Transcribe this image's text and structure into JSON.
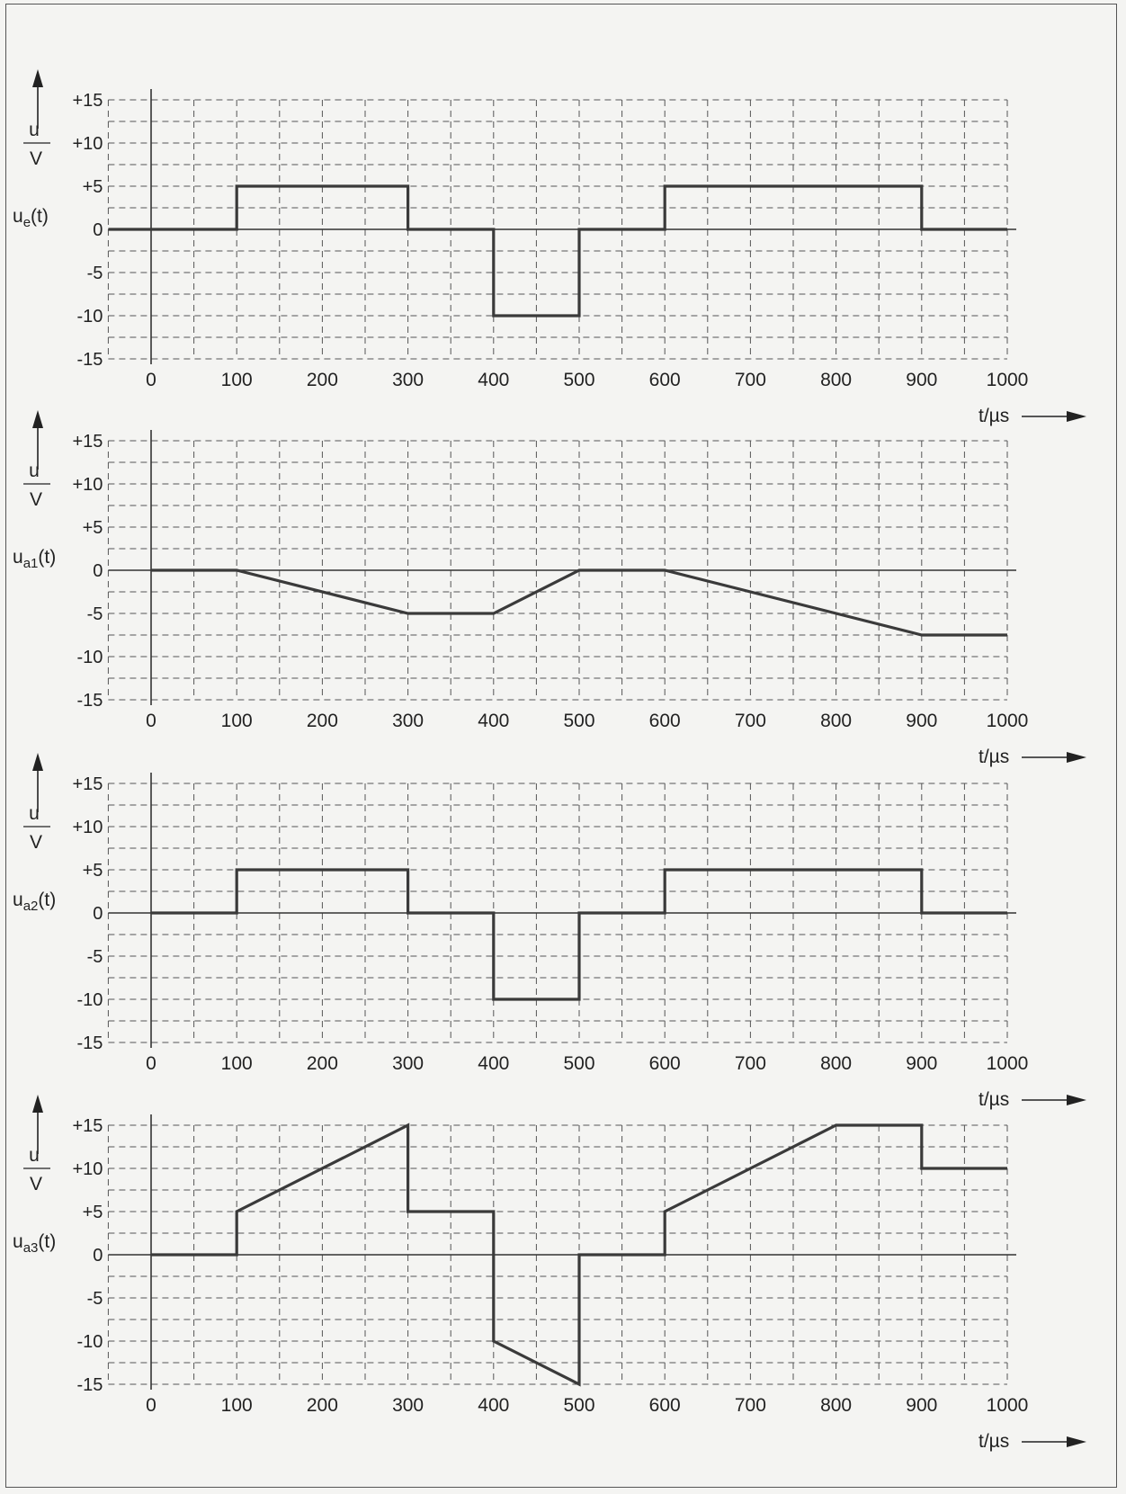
{
  "chart_data": [
    {
      "type": "line",
      "ylabel_top": "u",
      "ylabel_bottom": "V",
      "signal_label": "u",
      "signal_sub": "e",
      "xlabel": "t/µs",
      "xticks": [
        "0",
        "100",
        "200",
        "300",
        "400",
        "500",
        "600",
        "700",
        "800",
        "900",
        "1000"
      ],
      "yticks": [
        "+15",
        "+10",
        "+5",
        "0",
        "-5",
        "-10",
        "-15"
      ],
      "xlim": [
        -50,
        1000
      ],
      "ylim": [
        -15,
        15
      ],
      "x": [
        -50,
        100,
        100,
        300,
        300,
        400,
        400,
        500,
        500,
        600,
        600,
        900,
        900,
        1000
      ],
      "y": [
        0,
        0,
        5,
        5,
        0,
        0,
        -10,
        -10,
        0,
        0,
        5,
        5,
        0,
        0
      ]
    },
    {
      "type": "line",
      "ylabel_top": "u",
      "ylabel_bottom": "V",
      "signal_label": "u",
      "signal_sub": "a1",
      "xlabel": "t/µs",
      "xticks": [
        "0",
        "100",
        "200",
        "300",
        "400",
        "500",
        "600",
        "700",
        "800",
        "900",
        "1000"
      ],
      "yticks": [
        "+15",
        "+10",
        "+5",
        "0",
        "-5",
        "-10",
        "-15"
      ],
      "xlim": [
        -50,
        1000
      ],
      "ylim": [
        -15,
        15
      ],
      "x": [
        0,
        100,
        300,
        400,
        500,
        600,
        900,
        1000
      ],
      "y": [
        0,
        0,
        -5,
        -5,
        0,
        0,
        -7.5,
        -7.5
      ]
    },
    {
      "type": "line",
      "ylabel_top": "u",
      "ylabel_bottom": "V",
      "signal_label": "u",
      "signal_sub": "a2",
      "xlabel": "t/µs",
      "xticks": [
        "0",
        "100",
        "200",
        "300",
        "400",
        "500",
        "600",
        "700",
        "800",
        "900",
        "1000"
      ],
      "yticks": [
        "+15",
        "+10",
        "+5",
        "0",
        "-5",
        "-10",
        "-15"
      ],
      "xlim": [
        -50,
        1000
      ],
      "ylim": [
        -15,
        15
      ],
      "x": [
        0,
        100,
        100,
        300,
        300,
        400,
        400,
        500,
        500,
        600,
        600,
        900,
        900,
        1000
      ],
      "y": [
        0,
        0,
        5,
        5,
        0,
        0,
        -10,
        -10,
        0,
        0,
        5,
        5,
        0,
        0
      ]
    },
    {
      "type": "line",
      "ylabel_top": "u",
      "ylabel_bottom": "V",
      "signal_label": "u",
      "signal_sub": "a3",
      "xlabel": "t/µs",
      "xticks": [
        "0",
        "100",
        "200",
        "300",
        "400",
        "500",
        "600",
        "700",
        "800",
        "900",
        "1000"
      ],
      "yticks": [
        "+15",
        "+10",
        "+5",
        "0",
        "-5",
        "-10",
        "-15"
      ],
      "xlim": [
        -50,
        1000
      ],
      "ylim": [
        -15,
        15
      ],
      "x": [
        0,
        100,
        100,
        300,
        300,
        400,
        400,
        500,
        500,
        600,
        600,
        800,
        900,
        900,
        1000
      ],
      "y": [
        0,
        0,
        5,
        15,
        5,
        5,
        -10,
        -15,
        0,
        0,
        5,
        15,
        15,
        10,
        10
      ]
    }
  ],
  "colors": {
    "line": "#3a3a3a",
    "grid": "#555555",
    "frame": "#555555",
    "background": "#f4f4f2"
  }
}
